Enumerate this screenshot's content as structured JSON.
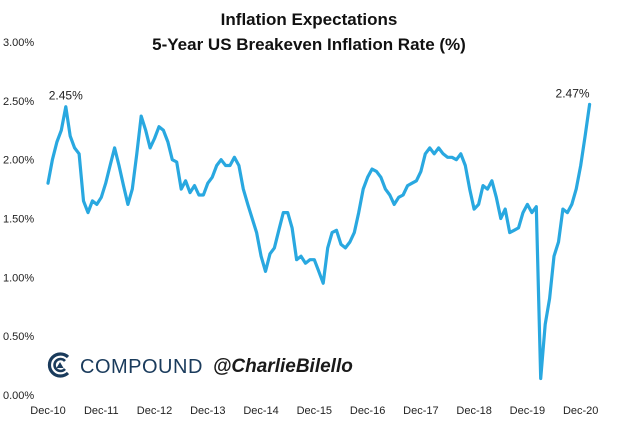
{
  "chart_data": {
    "type": "line",
    "title": "Inflation Expectations",
    "subtitle": "5-Year US Breakeven Inflation Rate (%)",
    "xlabel": "",
    "ylabel": "",
    "ylim": [
      0,
      3
    ],
    "y_ticks": [
      "0.00%",
      "0.50%",
      "1.00%",
      "1.50%",
      "2.00%",
      "2.50%",
      "3.00%"
    ],
    "y_tick_values": [
      0,
      0.5,
      1.0,
      1.5,
      2.0,
      2.5,
      3.0
    ],
    "x_ticks": [
      "Dec-10",
      "Dec-11",
      "Dec-12",
      "Dec-13",
      "Dec-14",
      "Dec-15",
      "Dec-16",
      "Dec-17",
      "Dec-18",
      "Dec-19",
      "Dec-20"
    ],
    "x_range": [
      "2010-12",
      "2021-02"
    ],
    "grid": false,
    "line_color": "#29a8e0",
    "series": [
      {
        "points": [
          [
            "2010-12",
            1.8
          ],
          [
            "2011-01",
            2.0
          ],
          [
            "2011-02",
            2.15
          ],
          [
            "2011-03",
            2.25
          ],
          [
            "2011-04",
            2.45
          ],
          [
            "2011-05",
            2.2
          ],
          [
            "2011-06",
            2.1
          ],
          [
            "2011-07",
            2.05
          ],
          [
            "2011-08",
            1.65
          ],
          [
            "2011-09",
            1.55
          ],
          [
            "2011-10",
            1.65
          ],
          [
            "2011-11",
            1.62
          ],
          [
            "2011-12",
            1.68
          ],
          [
            "2012-01",
            1.8
          ],
          [
            "2012-02",
            1.95
          ],
          [
            "2012-03",
            2.1
          ],
          [
            "2012-04",
            1.95
          ],
          [
            "2012-05",
            1.78
          ],
          [
            "2012-06",
            1.62
          ],
          [
            "2012-07",
            1.75
          ],
          [
            "2012-08",
            2.05
          ],
          [
            "2012-09",
            2.37
          ],
          [
            "2012-10",
            2.25
          ],
          [
            "2012-11",
            2.1
          ],
          [
            "2012-12",
            2.18
          ],
          [
            "2013-01",
            2.28
          ],
          [
            "2013-02",
            2.25
          ],
          [
            "2013-03",
            2.15
          ],
          [
            "2013-04",
            2.0
          ],
          [
            "2013-05",
            1.98
          ],
          [
            "2013-06",
            1.75
          ],
          [
            "2013-07",
            1.82
          ],
          [
            "2013-08",
            1.72
          ],
          [
            "2013-09",
            1.78
          ],
          [
            "2013-10",
            1.7
          ],
          [
            "2013-11",
            1.7
          ],
          [
            "2013-12",
            1.8
          ],
          [
            "2014-01",
            1.85
          ],
          [
            "2014-02",
            1.95
          ],
          [
            "2014-03",
            2.0
          ],
          [
            "2014-04",
            1.95
          ],
          [
            "2014-05",
            1.95
          ],
          [
            "2014-06",
            2.02
          ],
          [
            "2014-07",
            1.95
          ],
          [
            "2014-08",
            1.75
          ],
          [
            "2014-09",
            1.62
          ],
          [
            "2014-10",
            1.5
          ],
          [
            "2014-11",
            1.38
          ],
          [
            "2014-12",
            1.18
          ],
          [
            "2015-01",
            1.05
          ],
          [
            "2015-02",
            1.2
          ],
          [
            "2015-03",
            1.25
          ],
          [
            "2015-04",
            1.4
          ],
          [
            "2015-05",
            1.55
          ],
          [
            "2015-06",
            1.55
          ],
          [
            "2015-07",
            1.42
          ],
          [
            "2015-08",
            1.15
          ],
          [
            "2015-09",
            1.18
          ],
          [
            "2015-10",
            1.12
          ],
          [
            "2015-11",
            1.15
          ],
          [
            "2015-12",
            1.15
          ],
          [
            "2016-01",
            1.05
          ],
          [
            "2016-02",
            0.95
          ],
          [
            "2016-03",
            1.25
          ],
          [
            "2016-04",
            1.38
          ],
          [
            "2016-05",
            1.4
          ],
          [
            "2016-06",
            1.28
          ],
          [
            "2016-07",
            1.25
          ],
          [
            "2016-08",
            1.3
          ],
          [
            "2016-09",
            1.38
          ],
          [
            "2016-10",
            1.55
          ],
          [
            "2016-11",
            1.75
          ],
          [
            "2016-12",
            1.85
          ],
          [
            "2017-01",
            1.92
          ],
          [
            "2017-02",
            1.9
          ],
          [
            "2017-03",
            1.85
          ],
          [
            "2017-04",
            1.75
          ],
          [
            "2017-05",
            1.7
          ],
          [
            "2017-06",
            1.62
          ],
          [
            "2017-07",
            1.68
          ],
          [
            "2017-08",
            1.7
          ],
          [
            "2017-09",
            1.78
          ],
          [
            "2017-10",
            1.8
          ],
          [
            "2017-11",
            1.82
          ],
          [
            "2017-12",
            1.9
          ],
          [
            "2018-01",
            2.05
          ],
          [
            "2018-02",
            2.1
          ],
          [
            "2018-03",
            2.05
          ],
          [
            "2018-04",
            2.1
          ],
          [
            "2018-05",
            2.05
          ],
          [
            "2018-06",
            2.02
          ],
          [
            "2018-07",
            2.02
          ],
          [
            "2018-08",
            2.0
          ],
          [
            "2018-09",
            2.05
          ],
          [
            "2018-10",
            1.95
          ],
          [
            "2018-11",
            1.75
          ],
          [
            "2018-12",
            1.58
          ],
          [
            "2019-01",
            1.62
          ],
          [
            "2019-02",
            1.78
          ],
          [
            "2019-03",
            1.75
          ],
          [
            "2019-04",
            1.82
          ],
          [
            "2019-05",
            1.68
          ],
          [
            "2019-06",
            1.5
          ],
          [
            "2019-07",
            1.58
          ],
          [
            "2019-08",
            1.38
          ],
          [
            "2019-09",
            1.4
          ],
          [
            "2019-10",
            1.42
          ],
          [
            "2019-11",
            1.55
          ],
          [
            "2019-12",
            1.62
          ],
          [
            "2020-01",
            1.55
          ],
          [
            "2020-02",
            1.6
          ],
          [
            "2020-03",
            0.14
          ],
          [
            "2020-04",
            0.6
          ],
          [
            "2020-05",
            0.82
          ],
          [
            "2020-06",
            1.18
          ],
          [
            "2020-07",
            1.3
          ],
          [
            "2020-08",
            1.58
          ],
          [
            "2020-09",
            1.55
          ],
          [
            "2020-10",
            1.62
          ],
          [
            "2020-11",
            1.75
          ],
          [
            "2020-12",
            1.95
          ],
          [
            "2021-01",
            2.2
          ],
          [
            "2021-02",
            2.47
          ]
        ]
      }
    ],
    "annotations": [
      {
        "date": "2011-04",
        "value": 2.45,
        "label": "2.45%"
      },
      {
        "date": "2021-02",
        "value": 2.47,
        "label": "2.47%"
      }
    ]
  },
  "brand": {
    "name": "COMPOUND",
    "handle": "@CharlieBilello",
    "logo_icon": "compound-c-icon",
    "color": "#1a3b5c"
  }
}
